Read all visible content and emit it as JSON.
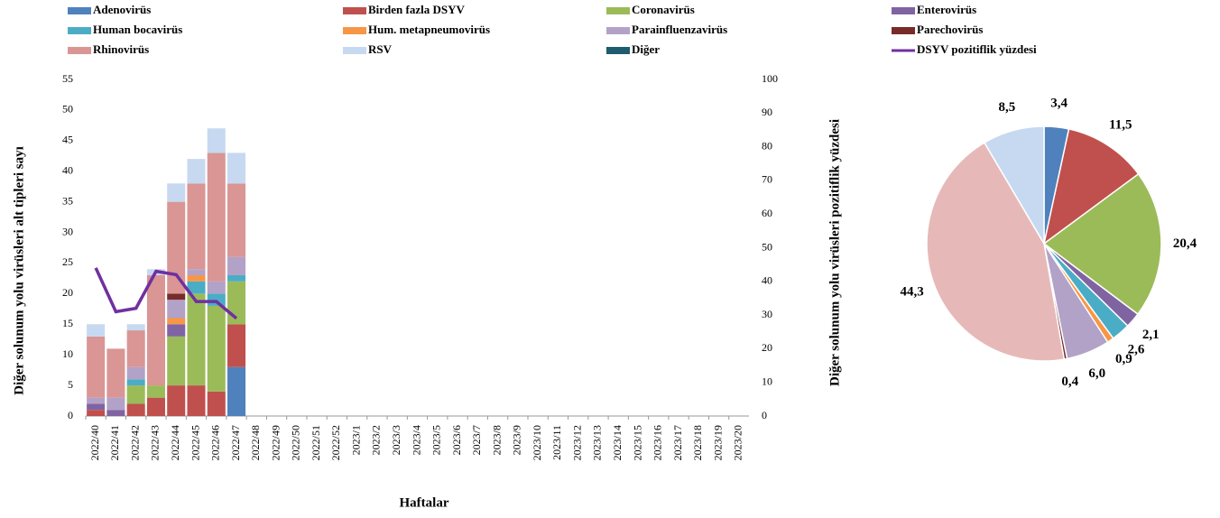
{
  "chart_data": [
    {
      "type": "bar-line",
      "y_label": "Diğer solunum yolu virüsleri alt tipleri sayı",
      "y2_label": "Diğer solunum yolu virüsleri pozitiflik yüzdesi",
      "x_label": "Haftalar",
      "categories": [
        "2022/40",
        "2022/41",
        "2022/42",
        "2022/43",
        "2022/44",
        "2022/45",
        "2022/46",
        "2022/47",
        "2022/48",
        "2022/49",
        "2022/50",
        "2022/51",
        "2022/52",
        "2023/1",
        "2023/2",
        "2023/3",
        "2023/4",
        "2023/5",
        "2023/6",
        "2023/7",
        "2023/8",
        "2023/9",
        "2023/10",
        "2023/11",
        "2023/12",
        "2023/13",
        "2023/14",
        "2023/15",
        "2023/16",
        "2023/17",
        "2023/18",
        "2023/19",
        "2023/20"
      ],
      "ylim": [
        0,
        55
      ],
      "yticks": [
        0,
        5,
        10,
        15,
        20,
        25,
        30,
        35,
        40,
        45,
        50,
        55
      ],
      "y2lim": [
        0,
        100
      ],
      "y2ticks": [
        0,
        10,
        20,
        30,
        40,
        50,
        60,
        70,
        80,
        90,
        100
      ],
      "grid": false,
      "series": [
        {
          "name": "Adenovirüs",
          "color": "#4f81bd",
          "values": [
            0,
            0,
            0,
            0,
            0,
            0,
            0,
            8,
            null,
            null,
            null,
            null,
            null,
            null,
            null,
            null,
            null,
            null,
            null,
            null,
            null,
            null,
            null,
            null,
            null,
            null,
            null,
            null,
            null,
            null,
            null,
            null,
            null
          ]
        },
        {
          "name": "Birden fazla DSYV",
          "color": "#c0504d",
          "values": [
            1,
            0,
            2,
            3,
            5,
            5,
            4,
            7,
            null,
            null,
            null,
            null,
            null,
            null,
            null,
            null,
            null,
            null,
            null,
            null,
            null,
            null,
            null,
            null,
            null,
            null,
            null,
            null,
            null,
            null,
            null,
            null,
            null
          ]
        },
        {
          "name": "Coronavirüs",
          "color": "#9bbb59",
          "values": [
            0,
            0,
            3,
            2,
            8,
            15,
            14,
            7,
            null,
            null,
            null,
            null,
            null,
            null,
            null,
            null,
            null,
            null,
            null,
            null,
            null,
            null,
            null,
            null,
            null,
            null,
            null,
            null,
            null,
            null,
            null,
            null,
            null
          ]
        },
        {
          "name": "Enterovirüs",
          "color": "#8064a2",
          "values": [
            1,
            1,
            0,
            0,
            2,
            0,
            0,
            0,
            null,
            null,
            null,
            null,
            null,
            null,
            null,
            null,
            null,
            null,
            null,
            null,
            null,
            null,
            null,
            null,
            null,
            null,
            null,
            null,
            null,
            null,
            null,
            null,
            null
          ]
        },
        {
          "name": "Human bocavirüs",
          "color": "#4bacc6",
          "values": [
            0,
            0,
            1,
            0,
            0,
            2,
            2,
            1,
            null,
            null,
            null,
            null,
            null,
            null,
            null,
            null,
            null,
            null,
            null,
            null,
            null,
            null,
            null,
            null,
            null,
            null,
            null,
            null,
            null,
            null,
            null,
            null,
            null
          ]
        },
        {
          "name": "Hum. metapneumovirüs",
          "color": "#f79646",
          "values": [
            0,
            0,
            0,
            0,
            1,
            1,
            0,
            0,
            null,
            null,
            null,
            null,
            null,
            null,
            null,
            null,
            null,
            null,
            null,
            null,
            null,
            null,
            null,
            null,
            null,
            null,
            null,
            null,
            null,
            null,
            null,
            null,
            null
          ]
        },
        {
          "name": "Parainfluenzavirüs",
          "color": "#b3a2c7",
          "values": [
            1,
            2,
            2,
            0,
            3,
            1,
            2,
            3,
            null,
            null,
            null,
            null,
            null,
            null,
            null,
            null,
            null,
            null,
            null,
            null,
            null,
            null,
            null,
            null,
            null,
            null,
            null,
            null,
            null,
            null,
            null,
            null,
            null
          ]
        },
        {
          "name": "Parechovirüs",
          "color": "#772c2a",
          "values": [
            0,
            0,
            0,
            0,
            1,
            0,
            0,
            0,
            null,
            null,
            null,
            null,
            null,
            null,
            null,
            null,
            null,
            null,
            null,
            null,
            null,
            null,
            null,
            null,
            null,
            null,
            null,
            null,
            null,
            null,
            null,
            null,
            null
          ]
        },
        {
          "name": "Rhinovirüs",
          "color": "#d99694",
          "values": [
            10,
            8,
            6,
            18,
            15,
            14,
            21,
            12,
            null,
            null,
            null,
            null,
            null,
            null,
            null,
            null,
            null,
            null,
            null,
            null,
            null,
            null,
            null,
            null,
            null,
            null,
            null,
            null,
            null,
            null,
            null,
            null,
            null
          ]
        },
        {
          "name": "RSV",
          "color": "#c6d9f1",
          "values": [
            2,
            0,
            1,
            1,
            3,
            4,
            4,
            5,
            null,
            null,
            null,
            null,
            null,
            null,
            null,
            null,
            null,
            null,
            null,
            null,
            null,
            null,
            null,
            null,
            null,
            null,
            null,
            null,
            null,
            null,
            null,
            null,
            null
          ]
        },
        {
          "name": "Diğer",
          "color": "#1f5c6e",
          "values": [
            0,
            0,
            0,
            0,
            0,
            0,
            0,
            0,
            null,
            null,
            null,
            null,
            null,
            null,
            null,
            null,
            null,
            null,
            null,
            null,
            null,
            null,
            null,
            null,
            null,
            null,
            null,
            null,
            null,
            null,
            null,
            null,
            null
          ]
        },
        {
          "name": "DSYV pozitiflik yüzdesi",
          "type": "line",
          "axis": "y2",
          "color": "#7030a0",
          "values": [
            44,
            31,
            32,
            43,
            42,
            34,
            34,
            29,
            null,
            null,
            null,
            null,
            null,
            null,
            null,
            null,
            null,
            null,
            null,
            null,
            null,
            null,
            null,
            null,
            null,
            null,
            null,
            null,
            null,
            null,
            null,
            null,
            null
          ]
        }
      ]
    },
    {
      "type": "pie",
      "values": [
        3.4,
        11.5,
        20.4,
        2.1,
        2.6,
        0.9,
        6.0,
        0.4,
        44.3,
        8.5
      ],
      "value_labels": [
        "3,4",
        "11,5",
        "20,4",
        "2,1",
        "2,6",
        "0,9",
        "6,0",
        "0,4",
        "44,3",
        "8,5"
      ],
      "colors": [
        "#4f81bd",
        "#c0504d",
        "#9bbb59",
        "#8064a2",
        "#4bacc6",
        "#f79646",
        "#b3a2c7",
        "#772c2a",
        "#e6b9b8",
        "#c6d9f1"
      ]
    }
  ]
}
